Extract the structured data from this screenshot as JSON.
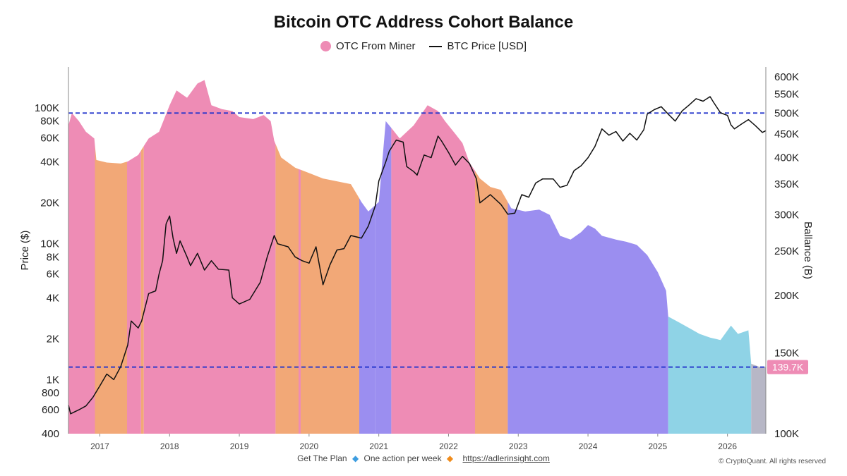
{
  "chart_data": {
    "type": "area",
    "title": "Bitcoin OTC Address Cohort Balance",
    "legend": [
      {
        "label": "OTC From Miner",
        "marker": "dot",
        "color": "#ee8cb5"
      },
      {
        "label": "BTC Price [USD]",
        "marker": "line",
        "color": "#111111"
      }
    ],
    "xlabel": "",
    "x_ticks": [
      "2017",
      "2018",
      "2019",
      "2020",
      "2021",
      "2022",
      "2023",
      "2024",
      "2025",
      "2026"
    ],
    "x_range": [
      2016.55,
      2026.55
    ],
    "left_axis": {
      "label": "Price ($)",
      "scale": "log",
      "range": [
        400,
        200000
      ],
      "ticks": [
        {
          "v": 400,
          "label": "400"
        },
        {
          "v": 600,
          "label": "600"
        },
        {
          "v": 800,
          "label": "800"
        },
        {
          "v": 1000,
          "label": "1K"
        },
        {
          "v": 2000,
          "label": "2K"
        },
        {
          "v": 4000,
          "label": "4K"
        },
        {
          "v": 6000,
          "label": "6K"
        },
        {
          "v": 8000,
          "label": "8K"
        },
        {
          "v": 10000,
          "label": "10K"
        },
        {
          "v": 20000,
          "label": "20K"
        },
        {
          "v": 40000,
          "label": "40K"
        },
        {
          "v": 60000,
          "label": "60K"
        },
        {
          "v": 80000,
          "label": "80K"
        },
        {
          "v": 100000,
          "label": "100K"
        }
      ]
    },
    "right_axis": {
      "label": "Ballance (B)",
      "scale": "log",
      "range": [
        100000,
        630000
      ],
      "ticks": [
        {
          "v": 100000,
          "label": "100K"
        },
        {
          "v": 150000,
          "label": "150K"
        },
        {
          "v": 200000,
          "label": "200K"
        },
        {
          "v": 250000,
          "label": "250K"
        },
        {
          "v": 300000,
          "label": "300K"
        },
        {
          "v": 350000,
          "label": "350K"
        },
        {
          "v": 400000,
          "label": "400K"
        },
        {
          "v": 450000,
          "label": "450K"
        },
        {
          "v": 500000,
          "label": "500K"
        },
        {
          "v": 550000,
          "label": "550K"
        },
        {
          "v": 600000,
          "label": "600K"
        }
      ]
    },
    "reference_lines": [
      {
        "axis": "right",
        "value": 500000,
        "style": "dashed",
        "color": "#2233cc"
      },
      {
        "axis": "right",
        "value": 139700,
        "style": "dashed",
        "color": "#2233cc"
      }
    ],
    "current_value_label": {
      "text": "139.7K",
      "value": 139700,
      "color": "#ee8cb5"
    },
    "balance_series": {
      "name": "OTC From Miner",
      "axis": "right",
      "points": [
        [
          2016.55,
          470000
        ],
        [
          2016.6,
          500000
        ],
        [
          2016.7,
          480000
        ],
        [
          2016.8,
          455000
        ],
        [
          2016.92,
          440000
        ],
        [
          2016.95,
          395000
        ],
        [
          2017.1,
          390000
        ],
        [
          2017.3,
          388000
        ],
        [
          2017.4,
          392000
        ],
        [
          2017.55,
          405000
        ],
        [
          2017.7,
          440000
        ],
        [
          2017.85,
          455000
        ],
        [
          2018.0,
          520000
        ],
        [
          2018.1,
          560000
        ],
        [
          2018.25,
          540000
        ],
        [
          2018.4,
          580000
        ],
        [
          2018.5,
          590000
        ],
        [
          2018.6,
          520000
        ],
        [
          2018.75,
          510000
        ],
        [
          2018.9,
          505000
        ],
        [
          2019.0,
          490000
        ],
        [
          2019.2,
          485000
        ],
        [
          2019.35,
          495000
        ],
        [
          2019.45,
          480000
        ],
        [
          2019.5,
          435000
        ],
        [
          2019.6,
          400000
        ],
        [
          2019.8,
          380000
        ],
        [
          2020.0,
          370000
        ],
        [
          2020.2,
          360000
        ],
        [
          2020.4,
          355000
        ],
        [
          2020.6,
          350000
        ],
        [
          2020.75,
          320000
        ],
        [
          2020.85,
          305000
        ],
        [
          2021.0,
          320000
        ],
        [
          2021.1,
          480000
        ],
        [
          2021.3,
          440000
        ],
        [
          2021.5,
          470000
        ],
        [
          2021.7,
          520000
        ],
        [
          2021.85,
          505000
        ],
        [
          2021.95,
          480000
        ],
        [
          2022.1,
          450000
        ],
        [
          2022.2,
          430000
        ],
        [
          2022.3,
          390000
        ],
        [
          2022.45,
          360000
        ],
        [
          2022.6,
          345000
        ],
        [
          2022.75,
          340000
        ],
        [
          2022.9,
          310000
        ],
        [
          2023.1,
          305000
        ],
        [
          2023.3,
          308000
        ],
        [
          2023.45,
          300000
        ],
        [
          2023.6,
          270000
        ],
        [
          2023.75,
          265000
        ],
        [
          2023.9,
          275000
        ],
        [
          2024.0,
          285000
        ],
        [
          2024.1,
          280000
        ],
        [
          2024.2,
          270000
        ],
        [
          2024.4,
          265000
        ],
        [
          2024.55,
          262000
        ],
        [
          2024.7,
          258000
        ],
        [
          2024.85,
          245000
        ],
        [
          2025.0,
          225000
        ],
        [
          2025.12,
          205000
        ],
        [
          2025.15,
          180000
        ],
        [
          2025.3,
          175000
        ],
        [
          2025.45,
          170000
        ],
        [
          2025.6,
          165000
        ],
        [
          2025.75,
          162000
        ],
        [
          2025.9,
          160000
        ],
        [
          2026.05,
          172000
        ],
        [
          2026.15,
          165000
        ],
        [
          2026.3,
          168000
        ],
        [
          2026.34,
          142000
        ],
        [
          2026.45,
          140000
        ],
        [
          2026.55,
          139700
        ]
      ],
      "regimes": [
        {
          "from": 2016.55,
          "to": 2016.93,
          "color": "#ee8cb5"
        },
        {
          "from": 2016.93,
          "to": 2017.39,
          "color": "#f2a877"
        },
        {
          "from": 2017.39,
          "to": 2017.59,
          "color": "#ee8cb5"
        },
        {
          "from": 2017.59,
          "to": 2017.63,
          "color": "#f2a877"
        },
        {
          "from": 2017.63,
          "to": 2019.52,
          "color": "#ee8cb5"
        },
        {
          "from": 2019.52,
          "to": 2019.85,
          "color": "#f2a877"
        },
        {
          "from": 2019.85,
          "to": 2019.88,
          "color": "#ee8cb5"
        },
        {
          "from": 2019.88,
          "to": 2020.72,
          "color": "#f2a877"
        },
        {
          "from": 2020.72,
          "to": 2020.95,
          "color": "#9b8ef0"
        },
        {
          "from": 2020.95,
          "to": 2021.18,
          "color": "#9b8ef0"
        },
        {
          "from": 2021.18,
          "to": 2022.38,
          "color": "#ee8cb5"
        },
        {
          "from": 2022.38,
          "to": 2022.85,
          "color": "#f2a877"
        },
        {
          "from": 2022.85,
          "to": 2025.15,
          "color": "#9b8ef0"
        },
        {
          "from": 2025.15,
          "to": 2026.34,
          "color": "#8fd3e6"
        },
        {
          "from": 2026.34,
          "to": 2026.55,
          "color": "#b7b7c6"
        }
      ]
    },
    "price_series": {
      "name": "BTC Price [USD]",
      "axis": "left",
      "points": [
        [
          2016.55,
          650
        ],
        [
          2016.58,
          560
        ],
        [
          2016.7,
          600
        ],
        [
          2016.8,
          640
        ],
        [
          2016.9,
          740
        ],
        [
          2017.0,
          900
        ],
        [
          2017.1,
          1100
        ],
        [
          2017.2,
          1000
        ],
        [
          2017.3,
          1250
        ],
        [
          2017.4,
          1800
        ],
        [
          2017.45,
          2700
        ],
        [
          2017.55,
          2400
        ],
        [
          2017.6,
          2700
        ],
        [
          2017.7,
          4300
        ],
        [
          2017.8,
          4500
        ],
        [
          2017.85,
          6000
        ],
        [
          2017.9,
          7500
        ],
        [
          2017.95,
          14000
        ],
        [
          2018.0,
          16000
        ],
        [
          2018.05,
          11000
        ],
        [
          2018.1,
          8500
        ],
        [
          2018.15,
          10500
        ],
        [
          2018.25,
          8000
        ],
        [
          2018.3,
          6900
        ],
        [
          2018.4,
          8500
        ],
        [
          2018.5,
          6400
        ],
        [
          2018.6,
          7500
        ],
        [
          2018.7,
          6500
        ],
        [
          2018.85,
          6400
        ],
        [
          2018.9,
          4000
        ],
        [
          2019.0,
          3600
        ],
        [
          2019.15,
          3900
        ],
        [
          2019.3,
          5200
        ],
        [
          2019.4,
          8000
        ],
        [
          2019.5,
          11500
        ],
        [
          2019.55,
          10000
        ],
        [
          2019.7,
          9500
        ],
        [
          2019.8,
          8000
        ],
        [
          2019.9,
          7500
        ],
        [
          2020.0,
          7200
        ],
        [
          2020.1,
          9500
        ],
        [
          2020.2,
          5000
        ],
        [
          2020.3,
          7000
        ],
        [
          2020.4,
          9000
        ],
        [
          2020.5,
          9200
        ],
        [
          2020.6,
          11500
        ],
        [
          2020.75,
          11000
        ],
        [
          2020.85,
          13500
        ],
        [
          2020.95,
          19000
        ],
        [
          2021.0,
          29000
        ],
        [
          2021.1,
          40000
        ],
        [
          2021.15,
          48000
        ],
        [
          2021.25,
          58000
        ],
        [
          2021.35,
          56000
        ],
        [
          2021.4,
          37000
        ],
        [
          2021.5,
          34000
        ],
        [
          2021.55,
          32000
        ],
        [
          2021.65,
          45000
        ],
        [
          2021.75,
          43000
        ],
        [
          2021.85,
          62000
        ],
        [
          2021.9,
          57000
        ],
        [
          2022.0,
          47000
        ],
        [
          2022.1,
          38000
        ],
        [
          2022.2,
          44000
        ],
        [
          2022.3,
          39000
        ],
        [
          2022.4,
          30000
        ],
        [
          2022.45,
          20000
        ],
        [
          2022.6,
          23000
        ],
        [
          2022.75,
          19500
        ],
        [
          2022.85,
          16500
        ],
        [
          2022.95,
          16800
        ],
        [
          2023.05,
          23000
        ],
        [
          2023.15,
          22000
        ],
        [
          2023.25,
          28000
        ],
        [
          2023.35,
          30000
        ],
        [
          2023.5,
          30000
        ],
        [
          2023.6,
          26000
        ],
        [
          2023.7,
          27000
        ],
        [
          2023.8,
          34500
        ],
        [
          2023.9,
          37500
        ],
        [
          2024.0,
          43000
        ],
        [
          2024.1,
          52000
        ],
        [
          2024.2,
          70000
        ],
        [
          2024.3,
          63000
        ],
        [
          2024.4,
          67000
        ],
        [
          2024.5,
          57000
        ],
        [
          2024.6,
          65000
        ],
        [
          2024.7,
          58000
        ],
        [
          2024.8,
          69000
        ],
        [
          2024.85,
          90000
        ],
        [
          2024.95,
          97000
        ],
        [
          2025.05,
          102000
        ],
        [
          2025.15,
          90000
        ],
        [
          2025.25,
          80000
        ],
        [
          2025.35,
          95000
        ],
        [
          2025.45,
          105000
        ],
        [
          2025.55,
          117000
        ],
        [
          2025.65,
          112000
        ],
        [
          2025.75,
          121000
        ],
        [
          2025.8,
          110000
        ],
        [
          2025.9,
          92000
        ],
        [
          2026.0,
          88000
        ],
        [
          2026.05,
          75000
        ],
        [
          2026.1,
          70000
        ],
        [
          2026.2,
          76000
        ],
        [
          2026.3,
          82000
        ],
        [
          2026.4,
          74000
        ],
        [
          2026.5,
          66000
        ],
        [
          2026.55,
          68000
        ]
      ]
    }
  },
  "footer": {
    "text1": "Get The Plan",
    "text2": "One action per week",
    "link": "https://adlerinsight.com",
    "copyright": "© CryptoQuant. All rights reserved"
  }
}
